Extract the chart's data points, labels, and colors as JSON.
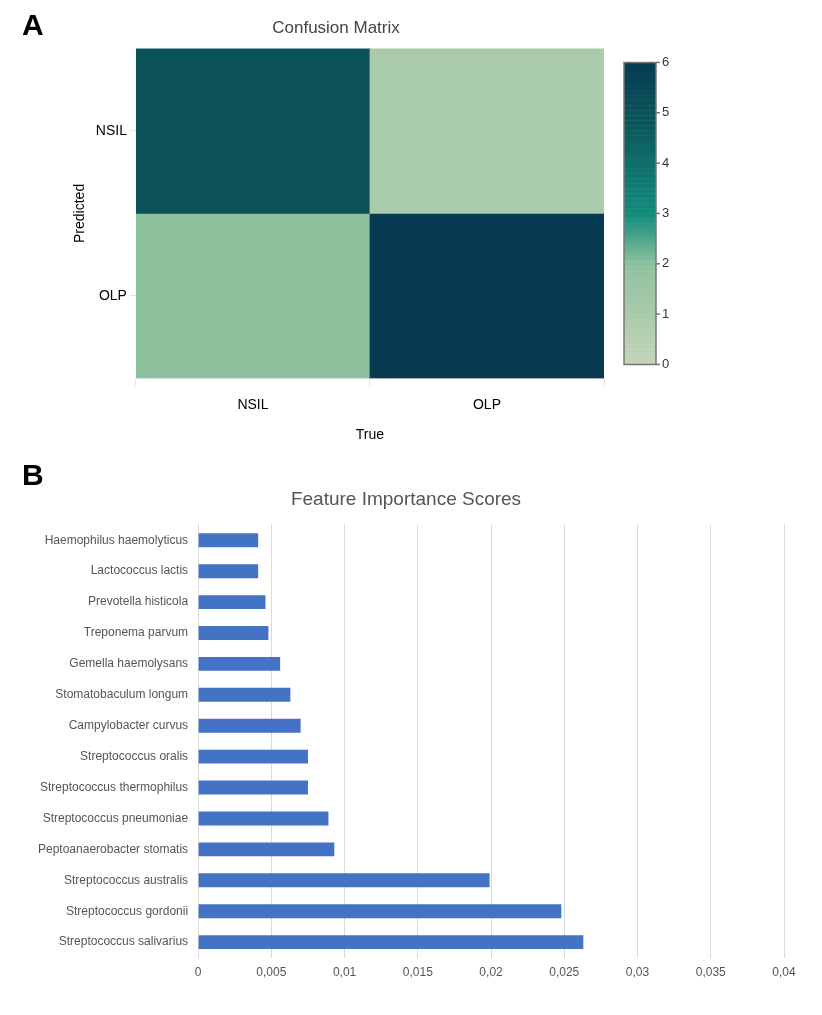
{
  "chart_data": [
    {
      "type": "heatmap",
      "title": "Confusion Matrix",
      "xlabel": "True",
      "ylabel": "Predicted",
      "annotations": [
        "A"
      ],
      "categories": [
        "NSIL",
        "OLP"
      ],
      "y_categories": [
        "NSIL",
        "OLP"
      ],
      "cells": [
        [
          5,
          1
        ],
        [
          2,
          6
        ]
      ],
      "clim": [
        0,
        6
      ],
      "cticks": [
        0,
        1,
        2,
        3,
        4,
        5,
        6
      ]
    },
    {
      "type": "bar",
      "orientation": "horizontal",
      "title": "Feature Importance Scores",
      "annotations": [
        "B"
      ],
      "color": "#4472c4",
      "grid": "x",
      "categories": [
        "Haemophilus haemolyticus",
        "Lactococcus lactis",
        "Prevotella histicola",
        "Treponema parvum",
        "Gemella haemolysans",
        "Stomatobaculum longum",
        "Campylobacter curvus",
        "Streptococcus oralis",
        "Streptococcus thermophilus",
        "Streptococcus pneumoniae",
        "Peptoanaerobacter stomatis",
        "Streptococcus australis",
        "Streptococcus gordonii",
        "Streptococcus salivarius"
      ],
      "values": [
        0.0041,
        0.0041,
        0.0046,
        0.0048,
        0.0056,
        0.0063,
        0.007,
        0.0075,
        0.0075,
        0.0089,
        0.0093,
        0.0199,
        0.0248,
        0.0263
      ],
      "xlim": [
        0,
        0.04
      ],
      "xticks": [
        0,
        {
          "value": 0.005,
          "label": "0,005"
        },
        {
          "value": 0.01,
          "label": "0,01"
        },
        {
          "value": 0.015,
          "label": "0,015"
        },
        {
          "value": 0.02,
          "label": "0,02"
        },
        {
          "value": 0.025,
          "label": "0,025"
        },
        {
          "value": 0.03,
          "label": "0,03"
        },
        {
          "value": 0.035,
          "label": "0,035"
        },
        {
          "value": 0.04,
          "label": "0,04"
        }
      ]
    }
  ]
}
